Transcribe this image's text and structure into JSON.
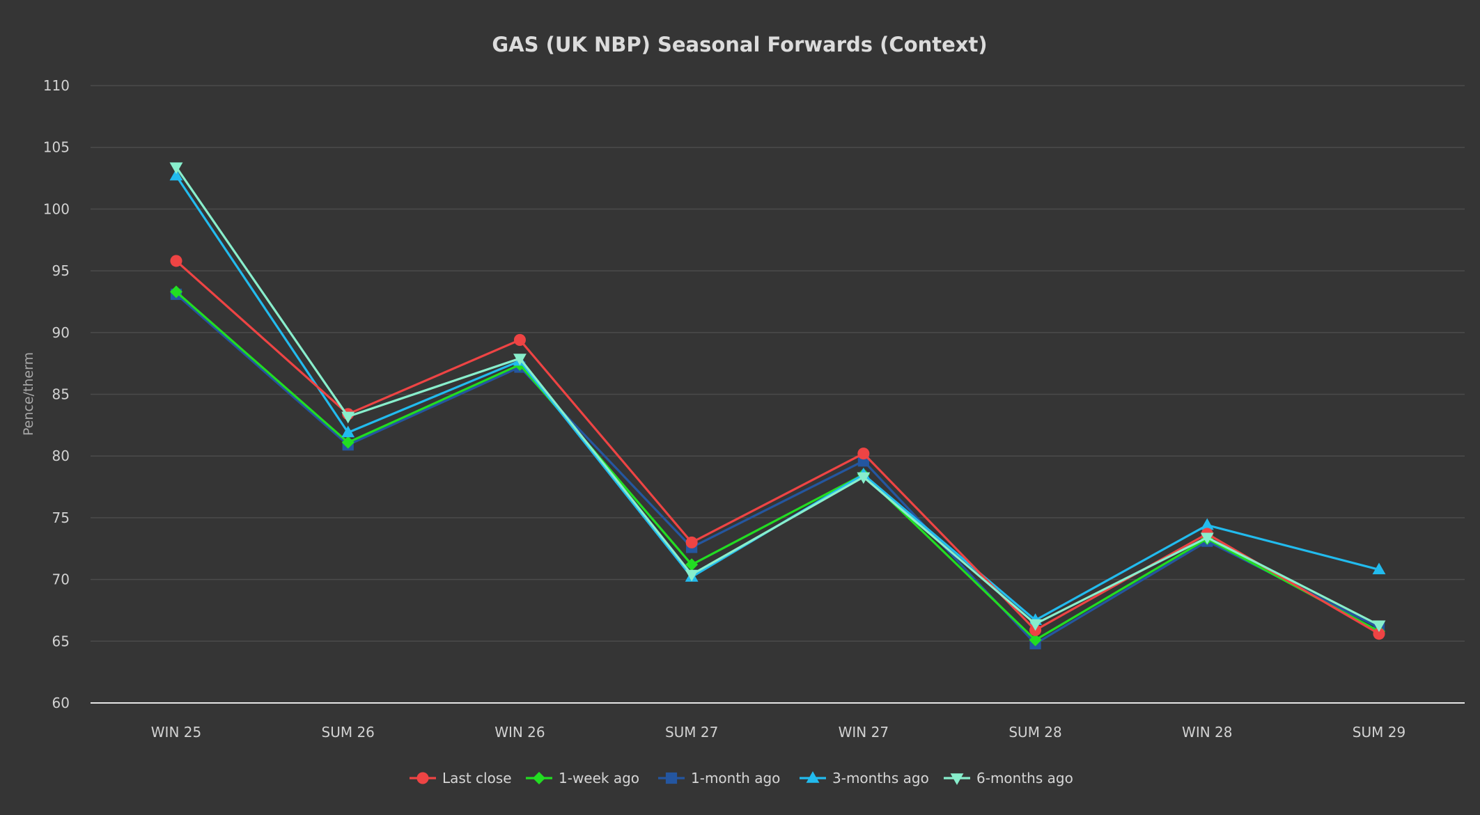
{
  "chart_data": {
    "type": "line",
    "title": "GAS (UK NBP) Seasonal Forwards (Context)",
    "xlabel": "",
    "ylabel": "Pence/therm",
    "ylim": [
      60,
      110
    ],
    "yticks": [
      60,
      65,
      70,
      75,
      80,
      85,
      90,
      95,
      100,
      105,
      110
    ],
    "grid": true,
    "legend_position": "bottom-center",
    "categories": [
      "WIN 25",
      "SUM 26",
      "WIN 26",
      "SUM 27",
      "WIN 27",
      "SUM 28",
      "WIN 28",
      "SUM 29"
    ],
    "series": [
      {
        "name": "1-month ago",
        "color": "#2456a0",
        "marker": "square",
        "values": [
          93.1,
          80.9,
          87.2,
          72.6,
          79.6,
          64.8,
          73.1,
          66.1
        ]
      },
      {
        "name": "1-week ago",
        "color": "#22dd22",
        "marker": "diamond",
        "values": [
          93.3,
          81.1,
          87.4,
          71.2,
          78.5,
          65.1,
          73.3,
          65.8
        ]
      },
      {
        "name": "3-months ago",
        "color": "#22bbee",
        "marker": "triangle-up",
        "values": [
          102.7,
          81.9,
          87.7,
          70.2,
          78.5,
          66.7,
          74.4,
          70.8
        ]
      },
      {
        "name": "Last close",
        "color": "#ee4444",
        "marker": "circle",
        "values": [
          95.8,
          83.4,
          89.4,
          73.0,
          80.2,
          65.9,
          73.7,
          65.6
        ]
      },
      {
        "name": "6-months ago",
        "color": "#88eecc",
        "marker": "triangle-down",
        "values": [
          103.4,
          83.2,
          87.9,
          70.4,
          78.3,
          66.4,
          73.4,
          66.3
        ]
      }
    ],
    "legend_order": [
      "Last close",
      "1-week ago",
      "1-month ago",
      "3-months ago",
      "6-months ago"
    ]
  }
}
